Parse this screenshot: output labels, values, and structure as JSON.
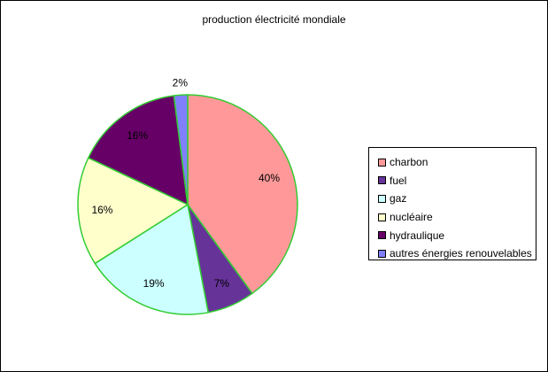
{
  "chart_data": {
    "type": "pie",
    "title": "production électricité mondiale",
    "categories": [
      "charbon",
      "fuel",
      "gaz",
      "nucléaire",
      "hydraulique",
      "autres énergies renouvelables"
    ],
    "values": [
      40,
      7,
      19,
      16,
      16,
      2
    ],
    "labels": [
      "40%",
      "7%",
      "19%",
      "16%",
      "16%",
      "2%"
    ],
    "colors": [
      "#ff9999",
      "#663399",
      "#ccffff",
      "#ffffcc",
      "#660066",
      "#8080ff"
    ],
    "slice_border_color": "#33cc33",
    "start": "12 o'clock, clockwise",
    "legend_position": "right"
  }
}
